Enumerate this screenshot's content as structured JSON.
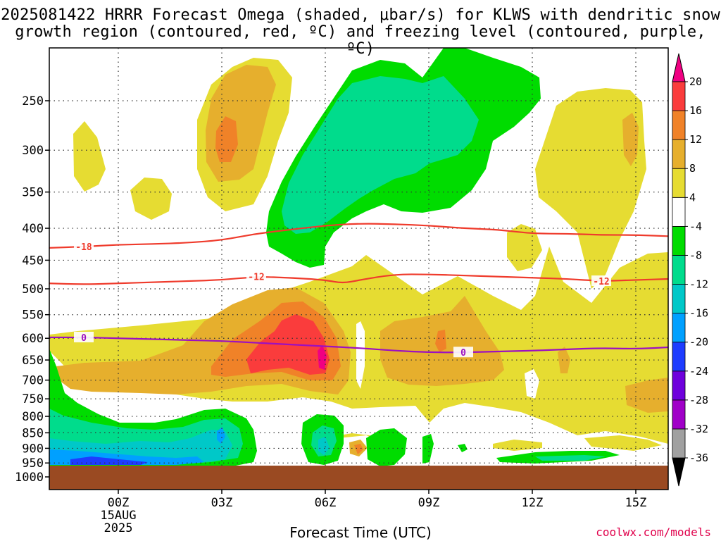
{
  "header": {
    "line1": "2025081422 HRRR Forecast Omega (shaded, μbar/s) for KLWS with dendritic snow",
    "line2": "growth region (contoured, red, ºC) and freezing level (contoured, purple, ºC)"
  },
  "footer": {
    "xlabel": "Forecast Time (UTC)",
    "credit": "coolwx.com/models"
  },
  "colors": {
    "terrain": "#9a4a22",
    "dgz_contour": "#ef3b2c",
    "freezing_contour": "#9c10c0",
    "grid": "#333333"
  },
  "chart_data": {
    "type": "heatmap",
    "xaxis": {
      "label": "Forecast Time (UTC)",
      "ticks": [
        {
          "t": 0,
          "label": "00Z",
          "sub": [
            "15AUG",
            "2025"
          ]
        },
        {
          "t": 3,
          "label": "03Z"
        },
        {
          "t": 6,
          "label": "06Z"
        },
        {
          "t": 9,
          "label": "09Z"
        },
        {
          "t": 12,
          "label": "12Z"
        },
        {
          "t": 15,
          "label": "15Z"
        }
      ],
      "range_hours": [
        -2,
        16
      ]
    },
    "yaxis": {
      "unit": "hPa",
      "scale": "log",
      "ticks": [
        250,
        300,
        350,
        400,
        450,
        500,
        550,
        600,
        650,
        700,
        750,
        800,
        850,
        900,
        950,
        1000
      ],
      "range": [
        1020,
        200
      ]
    },
    "colorbar": {
      "levels": [
        -36,
        -32,
        -28,
        -24,
        -20,
        -16,
        -12,
        -8,
        -4,
        4,
        8,
        12,
        16,
        20
      ],
      "colors": [
        "#000000",
        "#a0a0a0",
        "#a000c8",
        "#6e00dc",
        "#1e3cff",
        "#00a0ff",
        "#00c8c8",
        "#00dc8c",
        "#00dc00",
        "#ffffff",
        "#e6dc32",
        "#e6af2d",
        "#f08228",
        "#fa3c3c",
        "#f00082"
      ]
    },
    "contours": [
      {
        "name": "-18",
        "color": "#ef3b2c",
        "label": "-18",
        "points": [
          [
            -2,
            430
          ],
          [
            -1,
            428
          ],
          [
            0,
            425
          ],
          [
            1,
            424
          ],
          [
            2,
            422
          ],
          [
            3,
            418
          ],
          [
            4,
            408
          ],
          [
            5,
            402
          ],
          [
            6,
            396
          ],
          [
            7,
            393
          ],
          [
            8,
            394
          ],
          [
            9,
            396
          ],
          [
            10,
            400
          ],
          [
            11,
            402
          ],
          [
            12,
            408
          ],
          [
            13,
            408
          ],
          [
            14,
            410
          ],
          [
            15,
            410
          ],
          [
            16,
            412
          ]
        ],
        "label_at": [
          -1,
          428
        ]
      },
      {
        "name": "-12",
        "color": "#ef3b2c",
        "label": "-12",
        "points": [
          [
            -2,
            490
          ],
          [
            -1,
            492
          ],
          [
            0,
            490
          ],
          [
            1,
            488
          ],
          [
            2,
            486
          ],
          [
            3,
            484
          ],
          [
            4,
            478
          ],
          [
            5,
            480
          ],
          [
            6,
            484
          ],
          [
            6.5,
            490
          ],
          [
            7,
            484
          ],
          [
            8,
            474
          ],
          [
            9,
            474
          ],
          [
            10,
            476
          ],
          [
            11,
            478
          ],
          [
            12,
            480
          ],
          [
            13,
            482
          ],
          [
            14,
            486
          ],
          [
            15,
            484
          ],
          [
            16,
            482
          ]
        ],
        "label_at": [
          4,
          478
        ],
        "label_at2": [
          14,
          486
        ]
      },
      {
        "name": "0",
        "color": "#9c10c0",
        "label": "0",
        "points": [
          [
            -2,
            598
          ],
          [
            -1,
            598
          ],
          [
            0,
            600
          ],
          [
            1,
            602
          ],
          [
            2,
            604
          ],
          [
            3,
            606
          ],
          [
            4,
            610
          ],
          [
            5,
            614
          ],
          [
            6,
            618
          ],
          [
            7,
            622
          ],
          [
            8,
            628
          ],
          [
            9,
            632
          ],
          [
            10,
            632
          ],
          [
            11,
            630
          ],
          [
            12,
            628
          ],
          [
            13,
            625
          ],
          [
            14,
            622
          ],
          [
            15,
            624
          ],
          [
            16,
            620
          ]
        ],
        "label_at": [
          -1,
          598
        ],
        "label_at2": [
          10,
          632
        ]
      }
    ],
    "regions": [
      {
        "category": "4..8",
        "color": "#e6dc32"
      },
      {
        "category": "8..12",
        "color": "#e6af2d"
      },
      {
        "category": "12..16",
        "color": "#f08228"
      },
      {
        "category": "16..20",
        "color": "#fa3c3c"
      },
      {
        "category": ">20",
        "color": "#f00082"
      },
      {
        "category": "-8..-4",
        "color": "#00dc00"
      },
      {
        "category": "-12..-8",
        "color": "#00dc8c"
      },
      {
        "category": "-16..-12",
        "color": "#00c8c8"
      },
      {
        "category": "-20..-16",
        "color": "#00a0ff"
      },
      {
        "category": "-24..-20",
        "color": "#1e3cff"
      }
    ]
  }
}
